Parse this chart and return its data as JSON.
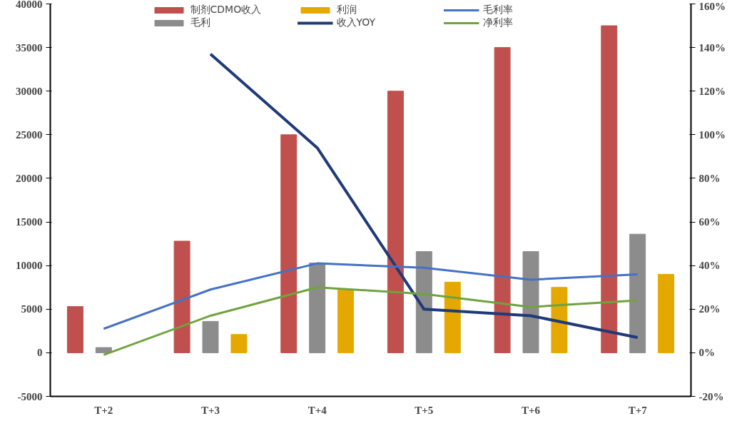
{
  "chart_data": {
    "type": "bar",
    "categories": [
      "T+2",
      "T+3",
      "T+4",
      "T+5",
      "T+6",
      "T+7"
    ],
    "series": [
      {
        "name": "制剂CDMO收入",
        "color": "#c0504d",
        "values": [
          5300,
          12800,
          25000,
          30000,
          35000,
          37500
        ]
      },
      {
        "name": "毛利",
        "color": "#8c8c8c",
        "values": [
          600,
          3600,
          10300,
          11600,
          11600,
          13600
        ]
      },
      {
        "name": "利润",
        "color": "#e5a800",
        "values": [
          null,
          2100,
          7200,
          8100,
          7500,
          9000
        ]
      },
      {
        "name": "收入YOY",
        "type": "line",
        "axis": "y2",
        "color": "#1f3a78",
        "values": [
          null,
          137,
          94,
          20,
          17,
          7
        ]
      },
      {
        "name": "毛利率",
        "type": "line",
        "axis": "y2",
        "color": "#4472c4",
        "values": [
          11,
          29,
          41,
          39,
          33.5,
          36
        ]
      },
      {
        "name": "净利率",
        "type": "line",
        "axis": "y2",
        "color": "#70a33f",
        "values": [
          -1,
          17,
          30,
          27,
          21,
          24
        ]
      }
    ],
    "ylim": [
      -5000,
      40000
    ],
    "yticks": [
      -5000,
      0,
      5000,
      10000,
      15000,
      20000,
      25000,
      30000,
      35000,
      40000
    ],
    "y2lim": [
      -20,
      160
    ],
    "y2ticks": [
      {
        "value": -20,
        "label": "-20%"
      },
      {
        "value": 0,
        "label": "0%"
      },
      {
        "value": 20,
        "label": "20%"
      },
      {
        "value": 40,
        "label": "40%"
      },
      {
        "value": 60,
        "label": "60%"
      },
      {
        "value": 80,
        "label": "80%"
      },
      {
        "value": 100,
        "label": "100%"
      },
      {
        "value": 120,
        "label": "120%"
      },
      {
        "value": 140,
        "label": "140%"
      },
      {
        "value": 160,
        "label": "160%"
      }
    ],
    "grid": false,
    "legend": "top",
    "line_style": "solid",
    "marker": "none"
  }
}
